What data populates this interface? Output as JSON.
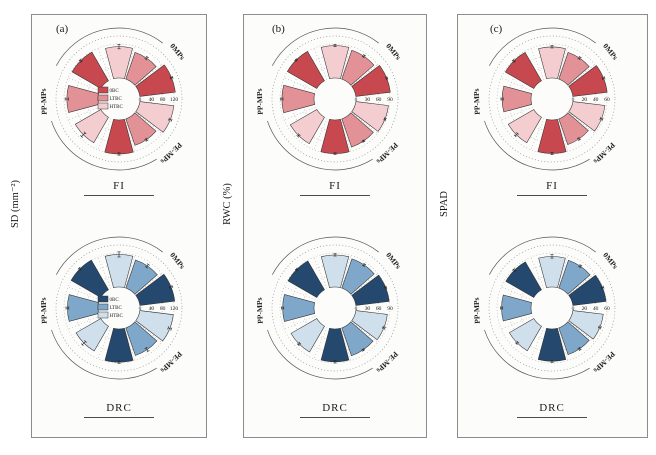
{
  "figure": {
    "panels": [
      {
        "label": "(a)",
        "measure": "SD (mm⁻²)",
        "conditions": [
          "FI",
          "DRC"
        ]
      },
      {
        "label": "(b)",
        "measure": "RWC (%)",
        "conditions": [
          "FI",
          "DRC"
        ]
      },
      {
        "label": "(c)",
        "measure": "SPAD",
        "conditions": [
          "FI",
          "DRC"
        ]
      }
    ],
    "legend_entries": [
      "0BC",
      "LTBC",
      "HTBC"
    ]
  },
  "palettes": {
    "red": {
      "0BC": "#c7494f",
      "LTBC": "#e29297",
      "HTBC": "#f4cdd0"
    },
    "blue": {
      "0BC": "#24486e",
      "LTBC": "#7fa7ca",
      "HTBC": "#cfdfec"
    }
  },
  "line_colors": {
    "arc": "#555555",
    "grid": "#b5aeae",
    "outer_grid": "#8f8f8f",
    "wedge_outline": "#2f2f2f",
    "error_bar": "#222222"
  },
  "chart_data": [
    {
      "type": "bar",
      "polar": true,
      "panel": "(a)",
      "condition": "FI",
      "measure": "SD (mm⁻²)",
      "categories": [
        "0MPs",
        "PE-MPs",
        "PP-MPs"
      ],
      "ticks": [
        0,
        40,
        80,
        120
      ],
      "rlim": [
        0,
        148
      ],
      "grid": "dotted",
      "legend": true,
      "palette": "red",
      "series": [
        {
          "name": "0BC",
          "values": [
            126,
            120,
            117
          ],
          "errors": [
            4,
            4,
            4
          ]
        },
        {
          "name": "LTBC",
          "values": [
            100,
            99,
            110
          ],
          "errors": [
            5,
            4,
            6
          ]
        },
        {
          "name": "HTBC",
          "values": [
            111,
            121,
            104
          ],
          "errors": [
            8,
            5,
            9
          ]
        }
      ]
    },
    {
      "type": "bar",
      "polar": true,
      "panel": "(a)",
      "condition": "DRC",
      "measure": "SD (mm⁻²)",
      "categories": [
        "0MPs",
        "PE-MPs",
        "PP-MPs"
      ],
      "ticks": [
        0,
        40,
        80,
        120
      ],
      "rlim": [
        0,
        148
      ],
      "grid": "dotted",
      "legend": true,
      "palette": "blue",
      "series": [
        {
          "name": "0BC",
          "values": [
            124,
            117,
            121
          ],
          "errors": [
            5,
            4,
            4
          ]
        },
        {
          "name": "LTBC",
          "values": [
            105,
            103,
            108
          ],
          "errors": [
            6,
            7,
            5
          ]
        },
        {
          "name": "HTBC",
          "values": [
            115,
            119,
            101
          ],
          "errors": [
            9,
            6,
            8
          ]
        }
      ]
    },
    {
      "type": "bar",
      "polar": true,
      "panel": "(b)",
      "condition": "FI",
      "measure": "RWC (%)",
      "categories": [
        "0MPs",
        "PE-MPs",
        "PP-MPs"
      ],
      "ticks": [
        0,
        30,
        60,
        90
      ],
      "rlim": [
        0,
        111
      ],
      "grid": "dotted",
      "legend": false,
      "palette": "red",
      "series": [
        {
          "name": "0BC",
          "values": [
            92,
            89,
            90
          ],
          "errors": [
            2,
            2,
            2
          ]
        },
        {
          "name": "LTBC",
          "values": [
            81,
            79,
            85
          ],
          "errors": [
            3,
            2,
            3
          ]
        },
        {
          "name": "HTBC",
          "values": [
            86,
            87,
            81
          ],
          "errors": [
            3,
            2,
            3
          ]
        }
      ]
    },
    {
      "type": "bar",
      "polar": true,
      "panel": "(b)",
      "condition": "DRC",
      "measure": "RWC (%)",
      "categories": [
        "0MPs",
        "PE-MPs",
        "PP-MPs"
      ],
      "ticks": [
        0,
        30,
        60,
        90
      ],
      "rlim": [
        0,
        111
      ],
      "grid": "dotted",
      "legend": false,
      "palette": "blue",
      "series": [
        {
          "name": "0BC",
          "values": [
            89,
            87,
            88
          ],
          "errors": [
            2,
            3,
            2
          ]
        },
        {
          "name": "LTBC",
          "values": [
            82,
            78,
            83
          ],
          "errors": [
            3,
            2,
            3
          ]
        },
        {
          "name": "HTBC",
          "values": [
            85,
            84,
            79
          ],
          "errors": [
            3,
            3,
            3
          ]
        }
      ]
    },
    {
      "type": "bar",
      "polar": true,
      "panel": "(c)",
      "condition": "FI",
      "measure": "SPAD",
      "categories": [
        "0MPs",
        "PE-MPs",
        "PP-MPs"
      ],
      "ticks": [
        0,
        20,
        40,
        60
      ],
      "rlim": [
        0,
        74
      ],
      "grid": "dotted",
      "legend": false,
      "palette": "red",
      "series": [
        {
          "name": "0BC",
          "values": [
            61,
            59,
            58
          ],
          "errors": [
            2,
            2,
            2
          ]
        },
        {
          "name": "LTBC",
          "values": [
            50,
            48,
            51
          ],
          "errors": [
            2,
            2,
            2
          ]
        },
        {
          "name": "HTBC",
          "values": [
            55,
            57,
            52
          ],
          "errors": [
            2,
            2,
            3
          ]
        }
      ]
    },
    {
      "type": "bar",
      "polar": true,
      "panel": "(c)",
      "condition": "DRC",
      "measure": "SPAD",
      "categories": [
        "0MPs",
        "PE-MPs",
        "PP-MPs"
      ],
      "ticks": [
        0,
        20,
        40,
        60
      ],
      "rlim": [
        0,
        74
      ],
      "grid": "dotted",
      "legend": false,
      "palette": "blue",
      "series": [
        {
          "name": "0BC",
          "values": [
            59,
            57,
            57
          ],
          "errors": [
            2,
            2,
            2
          ]
        },
        {
          "name": "LTBC",
          "values": [
            52,
            50,
            52
          ],
          "errors": [
            2,
            2,
            2
          ]
        },
        {
          "name": "HTBC",
          "values": [
            54,
            54,
            50
          ],
          "errors": [
            3,
            2,
            2
          ]
        }
      ]
    }
  ]
}
